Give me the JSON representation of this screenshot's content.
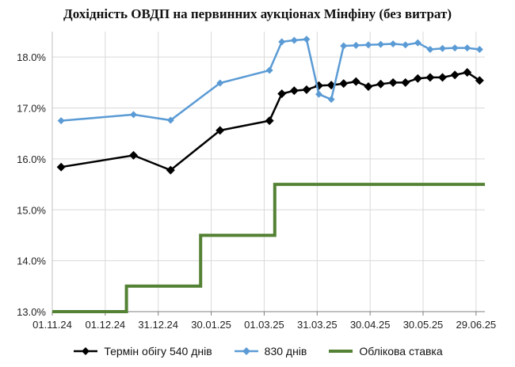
{
  "chart_data": {
    "type": "line",
    "title": "Дохідність ОВДП на первинних аукціонах Мінфіну (без витрат)",
    "x_type": "date",
    "x_ticks": [
      "01.11.24",
      "01.12.24",
      "31.12.24",
      "30.01.25",
      "01.03.25",
      "31.03.25",
      "30.04.25",
      "30.05.25",
      "29.06.25"
    ],
    "x_tick_dates": [
      "2024-11-01",
      "2024-12-01",
      "2024-12-31",
      "2025-01-30",
      "2025-03-01",
      "2025-03-31",
      "2025-04-30",
      "2025-05-30",
      "2025-06-29"
    ],
    "xlim": [
      "2024-11-01",
      "2025-07-04"
    ],
    "ylim": [
      13.0,
      18.5
    ],
    "y_ticks": [
      "13.0%",
      "14.0%",
      "15.0%",
      "16.0%",
      "17.0%",
      "18.0%"
    ],
    "y_tick_values": [
      13,
      14,
      15,
      16,
      17,
      18
    ],
    "grid": true,
    "legend_position": "bottom",
    "series": [
      {
        "name": "Термін обігу 540 днів",
        "color": "#000000",
        "marker": "diamond",
        "points": [
          [
            "2024-11-06",
            15.84
          ],
          [
            "2024-12-17",
            16.07
          ],
          [
            "2025-01-07",
            15.78
          ],
          [
            "2025-02-04",
            16.56
          ],
          [
            "2025-03-04",
            16.75
          ],
          [
            "2025-03-11",
            17.28
          ],
          [
            "2025-03-18",
            17.34
          ],
          [
            "2025-03-25",
            17.36
          ],
          [
            "2025-04-01",
            17.44
          ],
          [
            "2025-04-08",
            17.45
          ],
          [
            "2025-04-15",
            17.48
          ],
          [
            "2025-04-22",
            17.52
          ],
          [
            "2025-04-29",
            17.42
          ],
          [
            "2025-05-06",
            17.47
          ],
          [
            "2025-05-13",
            17.5
          ],
          [
            "2025-05-20",
            17.5
          ],
          [
            "2025-05-27",
            17.58
          ],
          [
            "2025-06-03",
            17.6
          ],
          [
            "2025-06-10",
            17.6
          ],
          [
            "2025-06-17",
            17.65
          ],
          [
            "2025-06-24",
            17.7
          ],
          [
            "2025-07-01",
            17.54
          ]
        ]
      },
      {
        "name": "830 днів",
        "color": "#5B9BD5",
        "marker": "diamond",
        "points": [
          [
            "2024-11-06",
            16.75
          ],
          [
            "2024-12-17",
            16.87
          ],
          [
            "2025-01-07",
            16.76
          ],
          [
            "2025-02-04",
            17.49
          ],
          [
            "2025-03-04",
            17.74
          ],
          [
            "2025-03-11",
            18.3
          ],
          [
            "2025-03-18",
            18.33
          ],
          [
            "2025-03-25",
            18.35
          ],
          [
            "2025-04-01",
            17.27
          ],
          [
            "2025-04-08",
            17.17
          ],
          [
            "2025-04-15",
            18.22
          ],
          [
            "2025-04-22",
            18.23
          ],
          [
            "2025-04-29",
            18.24
          ],
          [
            "2025-05-06",
            18.25
          ],
          [
            "2025-05-13",
            18.26
          ],
          [
            "2025-05-20",
            18.24
          ],
          [
            "2025-05-27",
            18.28
          ],
          [
            "2025-06-03",
            18.15
          ],
          [
            "2025-06-10",
            18.17
          ],
          [
            "2025-06-17",
            18.18
          ],
          [
            "2025-06-24",
            18.18
          ],
          [
            "2025-07-01",
            18.15
          ]
        ]
      },
      {
        "name": "Облікова ставка",
        "color": "#548235",
        "step": true,
        "points": [
          [
            "2024-11-01",
            13.0
          ],
          [
            "2024-12-13",
            13.0
          ],
          [
            "2024-12-13",
            13.5
          ],
          [
            "2025-01-24",
            13.5
          ],
          [
            "2025-01-24",
            14.5
          ],
          [
            "2025-03-07",
            14.5
          ],
          [
            "2025-03-07",
            15.5
          ],
          [
            "2025-07-04",
            15.5
          ]
        ]
      }
    ]
  }
}
